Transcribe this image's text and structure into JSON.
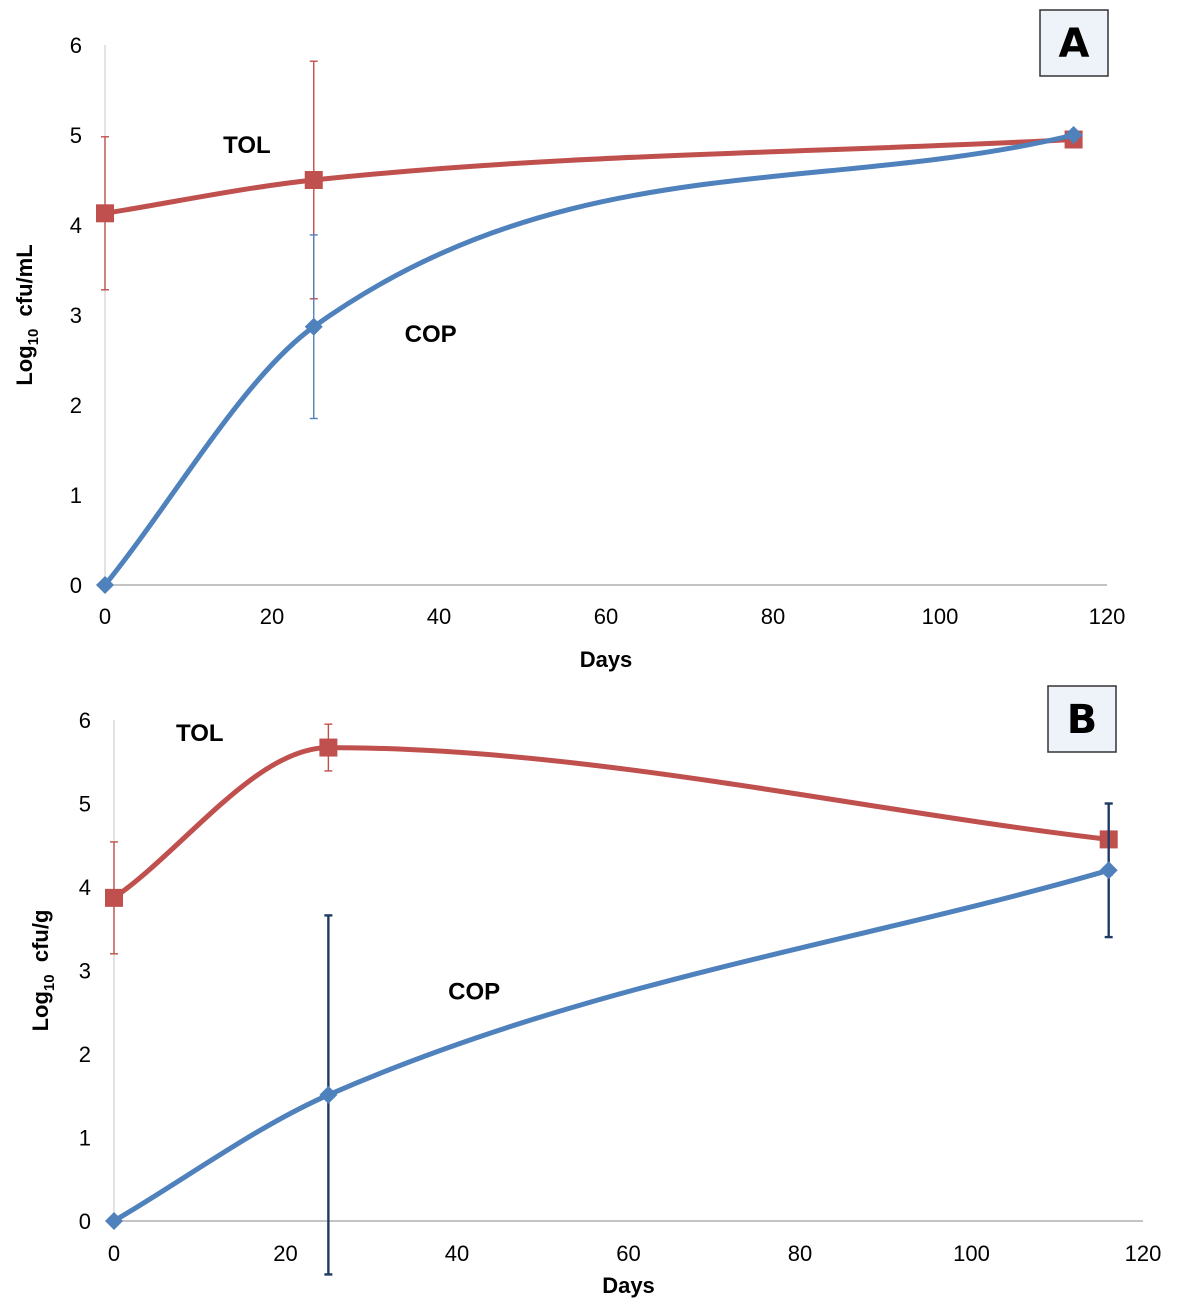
{
  "chart_data": [
    {
      "type": "line",
      "panel_label": "A",
      "xlabel": "Days",
      "ylabel_main": "Log",
      "ylabel_sub": "10",
      "ylabel_unit": "cfu/mL",
      "xlim": [
        0,
        120
      ],
      "ylim": [
        0,
        6
      ],
      "x_ticks": [
        "0",
        "20",
        "40",
        "60",
        "80",
        "100",
        "120"
      ],
      "y_ticks": [
        "0",
        "1",
        "2",
        "3",
        "4",
        "5",
        "6"
      ],
      "x": [
        0,
        25,
        116
      ],
      "series": [
        {
          "name": "TOL",
          "color": "#c0504d",
          "marker": "square",
          "values": [
            4.13,
            4.5,
            4.95
          ],
          "error": [
            0.85,
            1.32,
            0
          ]
        },
        {
          "name": "COP",
          "color": "#4f81bd",
          "marker": "diamond",
          "values": [
            0,
            2.87,
            5.0
          ],
          "error": [
            0,
            1.02,
            0
          ]
        }
      ],
      "annotations": [
        {
          "series": "TOL",
          "x": 17,
          "y": 4.8
        },
        {
          "series": "COP",
          "x": 39,
          "y": 2.7
        }
      ]
    },
    {
      "type": "line",
      "panel_label": "B",
      "xlabel": "Days",
      "ylabel_main": "Log",
      "ylabel_sub": "10",
      "ylabel_unit": "cfu/g",
      "xlim": [
        0,
        120
      ],
      "ylim": [
        0,
        6
      ],
      "x_ticks": [
        "0",
        "20",
        "40",
        "60",
        "80",
        "100",
        "120"
      ],
      "y_ticks": [
        "0",
        "1",
        "2",
        "3",
        "4",
        "5",
        "6"
      ],
      "x": [
        0,
        25,
        116
      ],
      "series": [
        {
          "name": "TOL",
          "color": "#c0504d",
          "marker": "square",
          "values": [
            3.87,
            5.67,
            4.57
          ],
          "error": [
            0.67,
            0.28,
            0.43
          ]
        },
        {
          "name": "COP",
          "color": "#4f81bd",
          "marker": "diamond",
          "values": [
            0,
            1.51,
            4.2
          ],
          "error": [
            0,
            2.15,
            0.8
          ]
        }
      ],
      "annotations": [
        {
          "series": "TOL",
          "x": 10,
          "y": 5.75
        },
        {
          "series": "COP",
          "x": 42,
          "y": 2.65
        }
      ]
    }
  ]
}
